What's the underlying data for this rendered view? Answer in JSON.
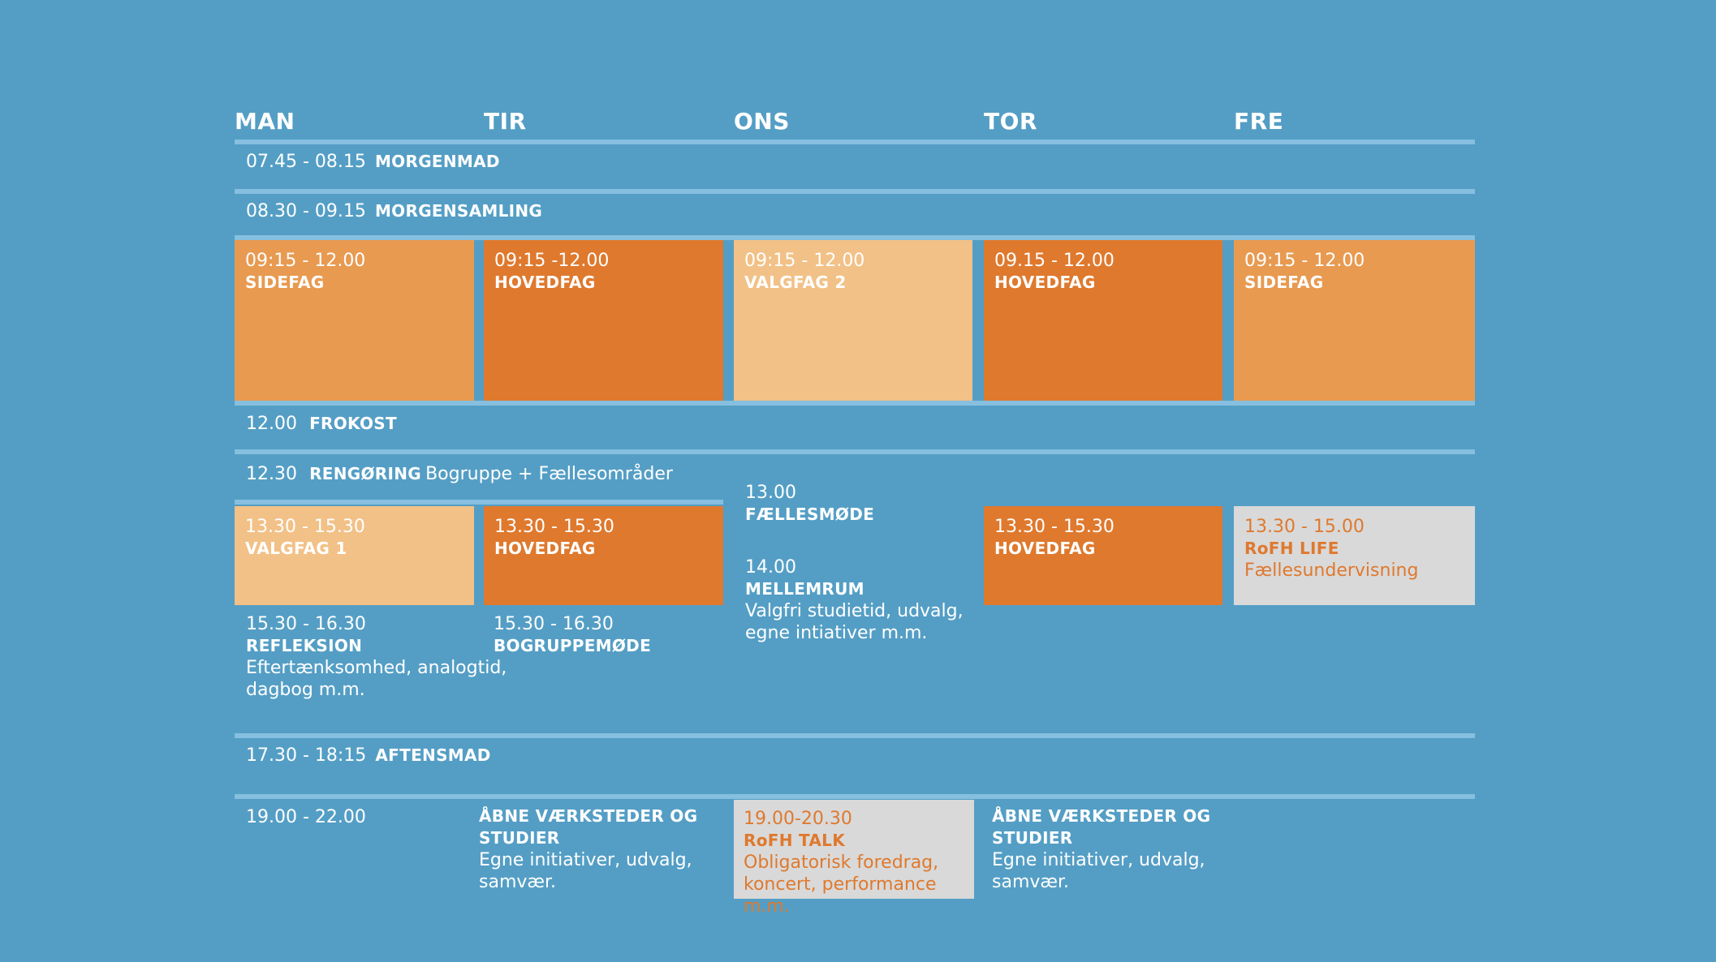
{
  "days": [
    "MAN",
    "TIR",
    "ONS",
    "TOR",
    "FRE"
  ],
  "rows": {
    "breakfast": {
      "time": "07.45 - 08.15",
      "label": "MORGENMAD"
    },
    "assembly": {
      "time": "08.30 - 09.15",
      "label": "MORGENSAMLING"
    },
    "lunch": {
      "time": "12.00",
      "label": "FROKOST"
    },
    "cleaning": {
      "time": "12.30",
      "label": "RENGØRING",
      "detail": "Bogruppe + Fællesområder"
    },
    "dinner": {
      "time": "17.30 - 18:15",
      "label": "AFTENSMAD"
    },
    "evening": {
      "time": "19.00 - 22.00"
    }
  },
  "morning_blocks": [
    {
      "time": "09:15 - 12.00",
      "label": "SIDEFAG",
      "color": "#e89a51"
    },
    {
      "time": "09:15 -12.00",
      "label": "HOVEDFAG",
      "color": "#df792e"
    },
    {
      "time": "09:15 - 12.00",
      "label": "VALGFAG 2",
      "color": "#f2c187"
    },
    {
      "time": "09.15 - 12.00",
      "label": "HOVEDFAG",
      "color": "#df792e"
    },
    {
      "time": "09:15 - 12.00",
      "label": "SIDEFAG",
      "color": "#e89a51"
    }
  ],
  "afternoon": {
    "man": {
      "time": "13.30 - 15.30",
      "label": "VALGFAG 1"
    },
    "tir": {
      "time": "13.30 - 15.30",
      "label": "HOVEDFAG"
    },
    "tor": {
      "time": "13.30 - 15.30",
      "label": "HOVEDFAG"
    },
    "fre": {
      "time": "13.30 - 15.00",
      "label": "RoFH LIFE",
      "detail": "Fællesundervisning"
    },
    "ons_meeting": {
      "time": "13.00",
      "label": "FÆLLESMØDE"
    },
    "ons_free": {
      "time": "14.00",
      "label": "MELLEMRUM",
      "detail1": "Valgfri studietid, udvalg,",
      "detail2": "egne intiativer m.m."
    },
    "man_reflection": {
      "time": "15.30 - 16.30",
      "label": "REFLEKSION",
      "detail1": "Eftertænksomhed, analogtid,",
      "detail2": "dagbog m.m."
    },
    "tir_group": {
      "time": "15.30 - 16.30",
      "label": "BOGRUPPEMØDE"
    }
  },
  "evening": {
    "tir": {
      "label1": "ÅBNE VÆRKSTEDER OG",
      "label2": "STUDIER",
      "detail1": "Egne initiativer, udvalg,",
      "detail2": "samvær."
    },
    "ons": {
      "time": "19.00-20.30",
      "label": "RoFH TALK",
      "detail1": "Obligatorisk foredrag,",
      "detail2": "koncert, performance m.m."
    },
    "tor": {
      "label1": "ÅBNE VÆRKSTEDER OG",
      "label2": "STUDIER",
      "detail1": "Egne initiativer, udvalg,",
      "detail2": "samvær."
    }
  },
  "colors": {
    "background": "#549ec5",
    "rule": "#86bfdf",
    "light": "#f2c187",
    "mid": "#e89a51",
    "dark": "#df792e",
    "grey": "#d9d9d9"
  }
}
